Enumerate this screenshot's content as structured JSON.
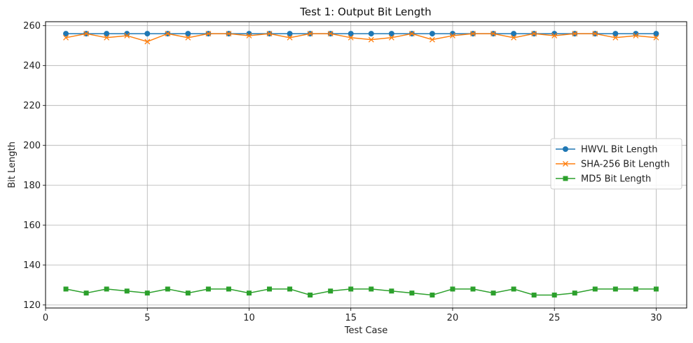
{
  "chart_data": {
    "type": "line",
    "title": "Test 1: Output Bit Length",
    "xlabel": "Test Case",
    "ylabel": "Bit Length",
    "xlim": [
      0,
      31.5
    ],
    "ylim": [
      118.5,
      262
    ],
    "xticks": [
      0,
      5,
      10,
      15,
      20,
      25,
      30
    ],
    "yticks": [
      120,
      140,
      160,
      180,
      200,
      220,
      240,
      260
    ],
    "grid": true,
    "legend_position": "center-right",
    "x": [
      1,
      2,
      3,
      4,
      5,
      6,
      7,
      8,
      9,
      10,
      11,
      12,
      13,
      14,
      15,
      16,
      17,
      18,
      19,
      20,
      21,
      22,
      23,
      24,
      25,
      26,
      27,
      28,
      29,
      30
    ],
    "series": [
      {
        "name": "HWVL Bit Length",
        "color": "#1f77b4",
        "marker": "circle",
        "values": [
          256,
          256,
          256,
          256,
          256,
          256,
          256,
          256,
          256,
          256,
          256,
          256,
          256,
          256,
          256,
          256,
          256,
          256,
          256,
          256,
          256,
          256,
          256,
          256,
          256,
          256,
          256,
          256,
          256,
          256
        ]
      },
      {
        "name": "SHA-256 Bit Length",
        "color": "#ff7f0e",
        "marker": "x",
        "values": [
          254,
          256,
          254,
          255,
          252,
          256,
          254,
          256,
          256,
          255,
          256,
          254,
          256,
          256,
          254,
          253,
          254,
          256,
          253,
          255,
          256,
          256,
          254,
          256,
          255,
          256,
          256,
          254,
          255,
          254
        ]
      },
      {
        "name": "MD5 Bit Length",
        "color": "#2ca02c",
        "marker": "square",
        "values": [
          128,
          126,
          128,
          127,
          126,
          128,
          126,
          128,
          128,
          126,
          128,
          128,
          125,
          127,
          128,
          128,
          127,
          126,
          125,
          128,
          128,
          126,
          128,
          125,
          125,
          126,
          128,
          128,
          128,
          128
        ]
      }
    ]
  }
}
